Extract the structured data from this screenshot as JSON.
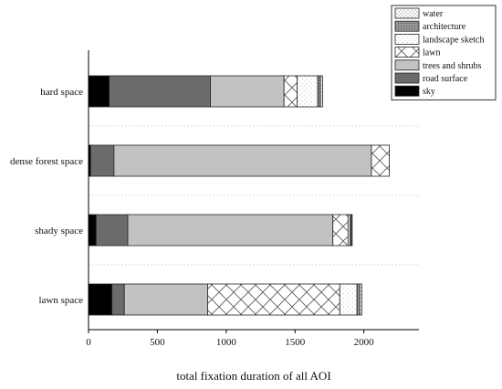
{
  "chart_data": {
    "type": "bar",
    "orientation": "horizontal",
    "stacked": true,
    "xlabel": "total fixation duration of all AOI",
    "ylabel": "",
    "xlim": [
      0,
      2400
    ],
    "xticks": [
      0,
      500,
      1000,
      1500,
      2000
    ],
    "xtick_labels": [
      "0",
      "500",
      "1000",
      "1500",
      "2000"
    ],
    "categories": [
      "hard space",
      "dense forest space",
      "shady space",
      "lawn space"
    ],
    "legend_position": "top-right",
    "series": [
      {
        "name": "sky",
        "color": "#000000",
        "pattern": "solid",
        "values": [
          150,
          15,
          55,
          170
        ]
      },
      {
        "name": "road surface",
        "color": "#6b6b6b",
        "pattern": "solid",
        "values": [
          735,
          170,
          230,
          90
        ]
      },
      {
        "name": "trees and shrubs",
        "color": "#c2c2c2",
        "pattern": "solid",
        "values": [
          535,
          1870,
          1490,
          605
        ]
      },
      {
        "name": "lawn",
        "color": "#ffffff",
        "pattern": "crosshatch",
        "values": [
          95,
          130,
          110,
          960
        ]
      },
      {
        "name": "landscape sketch",
        "color": "#ffffff",
        "pattern": "dots-light",
        "values": [
          150,
          0,
          15,
          125
        ]
      },
      {
        "name": "architecture",
        "color": "#888888",
        "pattern": "dots-dense",
        "values": [
          20,
          0,
          10,
          20
        ]
      },
      {
        "name": "water",
        "color": "#ffffff",
        "pattern": "dots",
        "values": [
          15,
          0,
          5,
          15
        ]
      }
    ]
  }
}
